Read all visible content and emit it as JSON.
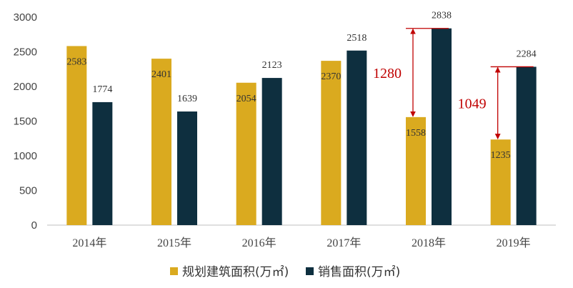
{
  "chart_data": {
    "type": "bar",
    "title": "",
    "xlabel": "",
    "ylabel": "",
    "categories": [
      "2014年",
      "2015年",
      "2016年",
      "2017年",
      "2018年",
      "2019年"
    ],
    "series": [
      {
        "name": "规划建筑面积(万㎡)",
        "color": "#DAAA1F",
        "values": [
          2583,
          2401,
          2054,
          2370,
          1558,
          1235
        ]
      },
      {
        "name": "销售面积(万㎡)",
        "color": "#0E2F3F",
        "values": [
          1774,
          1639,
          2123,
          2518,
          2838,
          2284
        ]
      }
    ],
    "yticks": [
      0,
      500,
      1000,
      1500,
      2000,
      2500,
      3000
    ],
    "ylim": [
      0,
      3000
    ],
    "grid": false,
    "legend_position": "bottom",
    "annotations": [
      {
        "category": "2018年",
        "text": "1280",
        "from": 1558,
        "to": 2838,
        "color": "#C00000"
      },
      {
        "category": "2019年",
        "text": "1049",
        "from": 1235,
        "to": 2284,
        "color": "#C00000"
      }
    ]
  }
}
